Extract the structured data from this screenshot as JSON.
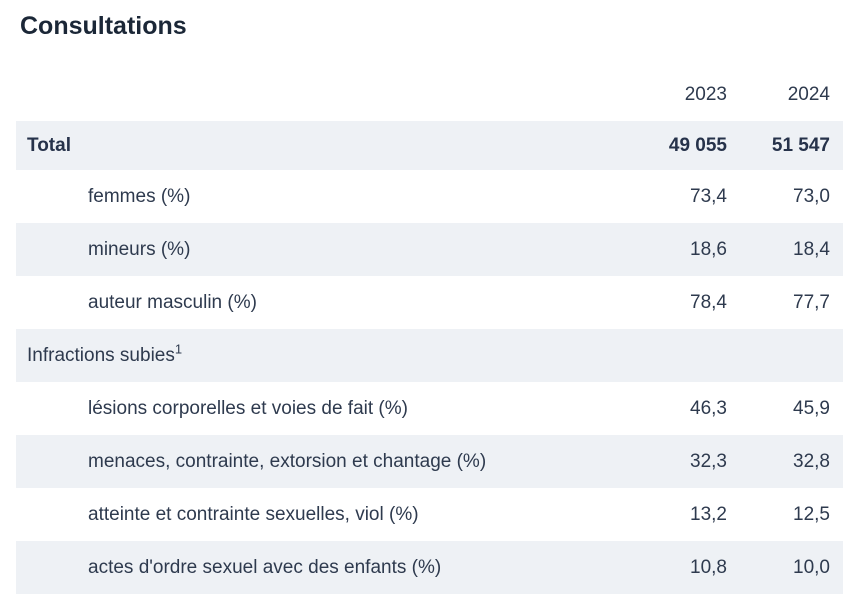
{
  "title": "Consultations",
  "colors": {
    "row_shaded_bg": "#eef1f5",
    "body_text": "#2e3a4e",
    "title_text": "#1b2737",
    "page_bg": "#ffffff"
  },
  "table": {
    "columns": {
      "y2023": "2023",
      "y2024": "2024"
    },
    "rows": [
      {
        "label": "Total",
        "v2023": "49 055",
        "v2024": "51 547"
      },
      {
        "label": "femmes (%)",
        "v2023": "73,4",
        "v2024": "73,0"
      },
      {
        "label": "mineurs (%)",
        "v2023": "18,6",
        "v2024": "18,4"
      },
      {
        "label": "auteur masculin (%)",
        "v2023": "78,4",
        "v2024": "77,7"
      },
      {
        "label": "Infractions subies",
        "footnote": "1"
      },
      {
        "label": "lésions corporelles et voies de fait (%)",
        "v2023": "46,3",
        "v2024": "45,9"
      },
      {
        "label": "menaces, contrainte, extorsion et chantage (%)",
        "v2023": "32,3",
        "v2024": "32,8"
      },
      {
        "label": "atteinte et contrainte sexuelles, viol (%)",
        "v2023": "13,2",
        "v2024": "12,5"
      },
      {
        "label": "actes d'ordre sexuel avec des enfants (%)",
        "v2023": "10,8",
        "v2024": "10,0"
      }
    ]
  }
}
